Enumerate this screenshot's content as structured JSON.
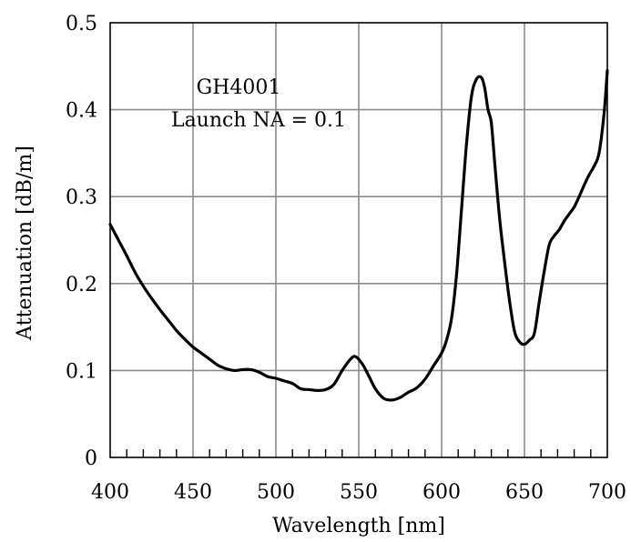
{
  "chart_data": {
    "type": "line",
    "title": "",
    "xlabel": "Wavelength [nm]",
    "ylabel": "Attenuation [dB/m]",
    "xlim": [
      400,
      700
    ],
    "ylim": [
      0,
      0.5
    ],
    "xticks": [
      400,
      450,
      500,
      550,
      600,
      650,
      700
    ],
    "xtick_labels": [
      "400",
      "450",
      "500",
      "550",
      "600",
      "650",
      "700"
    ],
    "yticks": [
      0,
      0.1,
      0.2,
      0.3,
      0.4,
      0.5
    ],
    "ytick_labels": [
      "0",
      "0.1",
      "0.2",
      "0.3",
      "0.4",
      "0.5"
    ],
    "x_minor_step": 10,
    "grid": true,
    "legend": "none",
    "annotations": [
      "GH4001",
      "Launch NA = 0.1"
    ],
    "series": [
      {
        "color": "#000000",
        "x": [
          400,
          405,
          410,
          415,
          420,
          425,
          430,
          435,
          440,
          445,
          450,
          455,
          460,
          465,
          470,
          475,
          480,
          485,
          490,
          495,
          500,
          505,
          510,
          515,
          520,
          525,
          530,
          535,
          540,
          545,
          548,
          552,
          556,
          560,
          565,
          570,
          575,
          580,
          585,
          590,
          595,
          600,
          603,
          606,
          609,
          612,
          615,
          618,
          621,
          624,
          626,
          628,
          630,
          632,
          635,
          638,
          641,
          644,
          647,
          650,
          653,
          656,
          659,
          662,
          665,
          668,
          671,
          674,
          677,
          680,
          683,
          686,
          689,
          692,
          695,
          698,
          700
        ],
        "y": [
          0.268,
          0.25,
          0.232,
          0.213,
          0.197,
          0.183,
          0.17,
          0.158,
          0.146,
          0.136,
          0.127,
          0.12,
          0.113,
          0.106,
          0.102,
          0.1,
          0.101,
          0.101,
          0.098,
          0.093,
          0.091,
          0.088,
          0.085,
          0.079,
          0.078,
          0.077,
          0.078,
          0.084,
          0.1,
          0.113,
          0.116,
          0.108,
          0.094,
          0.079,
          0.068,
          0.066,
          0.069,
          0.075,
          0.08,
          0.09,
          0.105,
          0.12,
          0.135,
          0.16,
          0.21,
          0.285,
          0.36,
          0.415,
          0.435,
          0.437,
          0.425,
          0.4,
          0.385,
          0.34,
          0.275,
          0.225,
          0.18,
          0.145,
          0.133,
          0.13,
          0.135,
          0.143,
          0.18,
          0.215,
          0.245,
          0.255,
          0.262,
          0.272,
          0.28,
          0.288,
          0.3,
          0.313,
          0.325,
          0.335,
          0.35,
          0.395,
          0.445
        ]
      }
    ]
  }
}
